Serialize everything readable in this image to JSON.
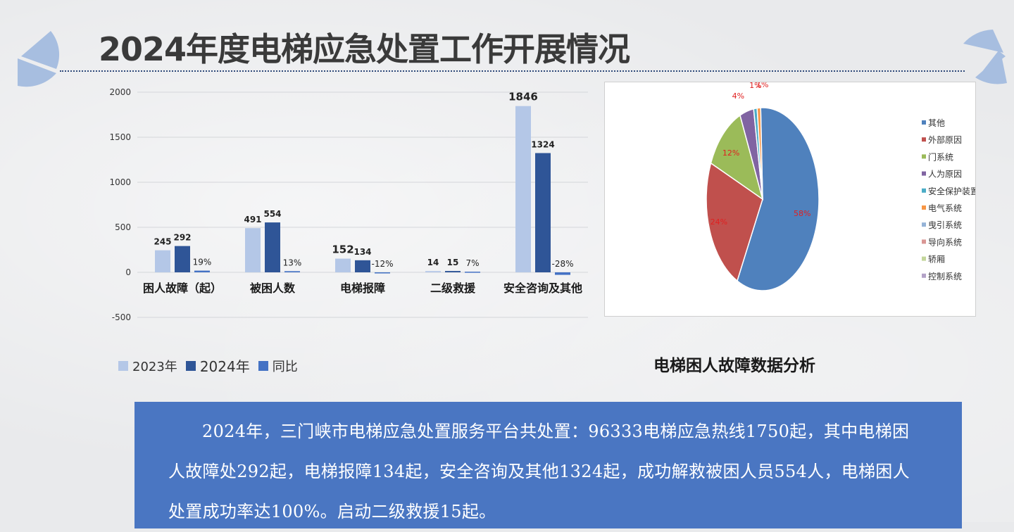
{
  "page": {
    "title": "2024年度电梯应急处置工作开展情况",
    "accent_color": "#4a76c2",
    "deco_color": "#a7bee0"
  },
  "chart_data": [
    {
      "type": "bar",
      "categories": [
        "困人故障（起）",
        "被困人数",
        "电梯报障",
        "二级救援",
        "安全咨询及其他"
      ],
      "series": [
        {
          "name": "2023年",
          "values": [
            245,
            491,
            152,
            14,
            1846
          ],
          "labels": [
            "245",
            "491",
            "152",
            "14",
            "1846"
          ],
          "color": "#b4c7e7"
        },
        {
          "name": "2024年",
          "values": [
            292,
            554,
            134,
            15,
            1324
          ],
          "labels": [
            "292",
            "554",
            "134",
            "15",
            "1324"
          ],
          "color": "#2f5597"
        },
        {
          "name": "同比",
          "values": [
            19,
            13,
            -12,
            7,
            -28
          ],
          "labels": [
            "19%",
            "13%",
            "-12%",
            "7%",
            "-28%"
          ],
          "color": "#4472c4"
        }
      ],
      "yticks": [
        "2000",
        "1500",
        "1000",
        "500",
        "0",
        "-500"
      ],
      "ylim": [
        -500,
        2000
      ],
      "grid": true,
      "legend": "bottom-left"
    },
    {
      "type": "pie",
      "caption": "电梯困人故障数据分析",
      "slices": [
        {
          "name": "其他",
          "value": 58,
          "label": "58%",
          "color": "#4f81bd"
        },
        {
          "name": "外部原因",
          "value": 24,
          "label": "24%",
          "color": "#c0504d"
        },
        {
          "name": "门系统",
          "value": 12,
          "label": "12%",
          "color": "#9bbb59"
        },
        {
          "name": "人为原因",
          "value": 4,
          "label": "4%",
          "color": "#8064a2"
        },
        {
          "name": "安全保护装置",
          "value": 1,
          "label": "1%",
          "color": "#4bacc6"
        },
        {
          "name": "电气系统",
          "value": 1,
          "label": "1%",
          "color": "#f79646"
        },
        {
          "name": "曳引系统",
          "value": 0,
          "label": "",
          "color": "#95b3d7"
        },
        {
          "name": "导向系统",
          "value": 0,
          "label": "",
          "color": "#d99694"
        },
        {
          "name": "轿厢",
          "value": 0,
          "label": "",
          "color": "#c3d69b"
        },
        {
          "name": "控制系统",
          "value": 0,
          "label": "",
          "color": "#b3a2c7"
        }
      ],
      "legend": "right"
    }
  ],
  "summary": {
    "text": "2024年，三门峡市电梯应急处置服务平台共处置：96333电梯应急热线1750起，其中电梯困人故障处292起，电梯报障134起，安全咨询及其他1324起，成功解救被困人员554人，电梯困人处置成功率达100%。启动二级救援15起。"
  }
}
